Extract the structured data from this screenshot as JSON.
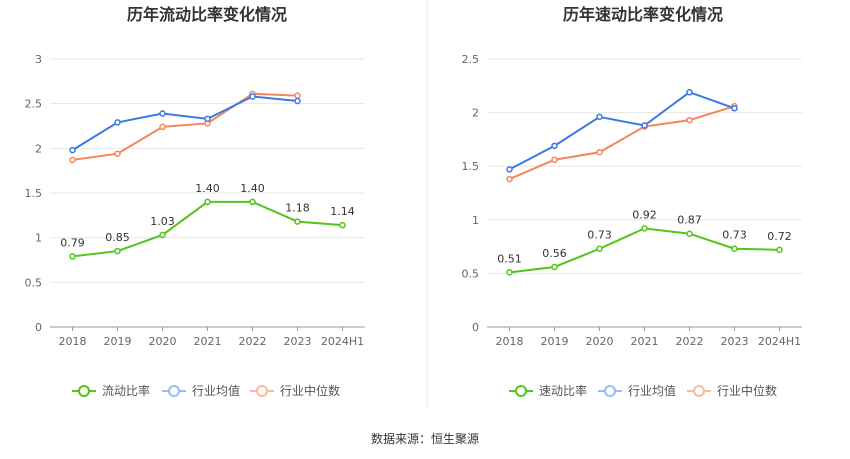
{
  "charts": [
    {
      "title": "历年流动比率变化情况",
      "legend": [
        {
          "label": "流动比率",
          "color": "#52c41a"
        },
        {
          "label": "行业均值",
          "color": "#3b78e7"
        },
        {
          "label": "行业中位数",
          "color": "#f5855b"
        }
      ]
    },
    {
      "title": "历年速动比率变化情况",
      "legend": [
        {
          "label": "速动比率",
          "color": "#52c41a"
        },
        {
          "label": "行业均值",
          "color": "#3b78e7"
        },
        {
          "label": "行业中位数",
          "color": "#f5855b"
        }
      ]
    }
  ],
  "source": "数据来源：恒生聚源",
  "chart_data": [
    {
      "type": "line",
      "title": "历年流动比率变化情况",
      "categories": [
        "2018",
        "2019",
        "2020",
        "2021",
        "2022",
        "2023",
        "2024H1"
      ],
      "ylim": [
        0,
        3
      ],
      "yticks": [
        "0",
        "0.5",
        "1",
        "1.5",
        "2",
        "2.5",
        "3"
      ],
      "grid": true,
      "legend_position": "bottom",
      "series": [
        {
          "name": "流动比率",
          "color": "#52c41a",
          "values": [
            0.79,
            0.85,
            1.03,
            1.4,
            1.4,
            1.18,
            1.14
          ],
          "labels": [
            "0.79",
            "0.85",
            "1.03",
            "1.40",
            "1.40",
            "1.18",
            "1.14"
          ]
        },
        {
          "name": "行业均值",
          "color": "#3b78e7",
          "values": [
            1.98,
            2.29,
            2.39,
            2.33,
            2.58,
            2.53,
            null
          ]
        },
        {
          "name": "行业中位数",
          "color": "#f5855b",
          "values": [
            1.87,
            1.94,
            2.24,
            2.28,
            2.61,
            2.59,
            null
          ]
        }
      ]
    },
    {
      "type": "line",
      "title": "历年速动比率变化情况",
      "categories": [
        "2018",
        "2019",
        "2020",
        "2021",
        "2022",
        "2023",
        "2024H1"
      ],
      "ylim": [
        0,
        2.5
      ],
      "yticks": [
        "0",
        "0.5",
        "1",
        "1.5",
        "2",
        "2.5"
      ],
      "grid": true,
      "legend_position": "bottom",
      "series": [
        {
          "name": "速动比率",
          "color": "#52c41a",
          "values": [
            0.51,
            0.56,
            0.73,
            0.92,
            0.87,
            0.73,
            0.72
          ],
          "labels": [
            "0.51",
            "0.56",
            "0.73",
            "0.92",
            "0.87",
            "0.73",
            "0.72"
          ]
        },
        {
          "name": "行业均值",
          "color": "#3b78e7",
          "values": [
            1.47,
            1.69,
            1.96,
            1.88,
            2.19,
            2.04,
            null
          ]
        },
        {
          "name": "行业中位数",
          "color": "#f5855b",
          "values": [
            1.38,
            1.56,
            1.63,
            1.87,
            1.93,
            2.06,
            null
          ]
        }
      ]
    }
  ]
}
